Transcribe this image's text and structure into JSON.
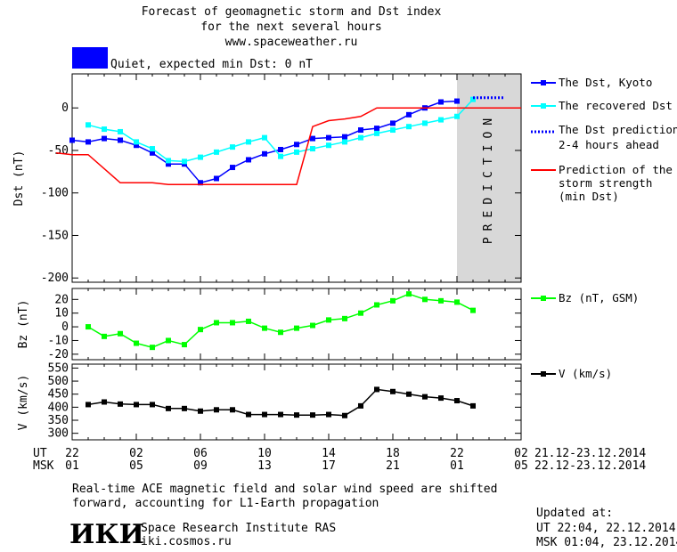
{
  "header": {
    "title_line1": "Forecast of geomagnetic storm and Dst index",
    "title_line2": "for the next several hours",
    "website": "www.spaceweather.ru",
    "status_text": "Quiet, expected min Dst: 0 nT",
    "status_color": "#0000ff"
  },
  "prediction_label": "PREDICTION",
  "time_axis": {
    "ut_label": "UT",
    "msk_label": "MSK",
    "ut_ticks": [
      "22",
      "02",
      "06",
      "10",
      "14",
      "18",
      "22",
      "02"
    ],
    "msk_ticks": [
      "01",
      "05",
      "09",
      "13",
      "17",
      "21",
      "01",
      "05"
    ],
    "ut_range": "21.12-23.12.2014",
    "msk_range": "22.12-23.12.2014"
  },
  "footer": {
    "note_line1": "Real-time ACE magnetic field and solar wind speed are shifted",
    "note_line2": "forward, accounting for L1-Earth propagation",
    "logo_text": "ИКИ",
    "institute": "Space Research Institute RAS",
    "institute_site": "iki.cosmos.ru",
    "updated_label": "Updated at:",
    "updated_ut": "UT  22:04, 22.12.2014",
    "updated_msk": "MSK 01:04, 23.12.2014"
  },
  "chart_data": [
    {
      "type": "line",
      "ylabel": "Dst (nT)",
      "ylim": [
        -205,
        40
      ],
      "y_ticks": [
        0,
        -50,
        -100,
        -150,
        -200
      ],
      "x_unit": "hours since 22 UT 21.12.2014",
      "xlim": [
        0,
        28
      ],
      "prediction_region": [
        24,
        28
      ],
      "series": [
        {
          "name": "The Dst, Kyoto",
          "color": "#0000ff",
          "marker": "square",
          "x": [
            0,
            1,
            2,
            3,
            4,
            5,
            6,
            7,
            8,
            9,
            10,
            11,
            12,
            13,
            14,
            15,
            16,
            17,
            18,
            19,
            20,
            21,
            22,
            23,
            24
          ],
          "y": [
            -38,
            -40,
            -36,
            -38,
            -44,
            -53,
            -66,
            -66,
            -88,
            -83,
            -70,
            -61,
            -54,
            -49,
            -43,
            -36,
            -35,
            -34,
            -26,
            -24,
            -18,
            -8,
            0,
            7,
            8
          ]
        },
        {
          "name": "The recovered Dst",
          "color": "#00ffff",
          "marker": "square",
          "x": [
            1,
            2,
            3,
            4,
            5,
            6,
            7,
            8,
            9,
            10,
            11,
            12,
            13,
            14,
            15,
            16,
            17,
            18,
            19,
            20,
            21,
            22,
            23,
            24,
            25
          ],
          "y": [
            -20,
            -25,
            -28,
            -40,
            -48,
            -62,
            -63,
            -58,
            -52,
            -46,
            -40,
            -35,
            -57,
            -52,
            -48,
            -44,
            -40,
            -35,
            -30,
            -26,
            -22,
            -18,
            -14,
            -10,
            10
          ]
        },
        {
          "name": "The Dst prediction",
          "name_line2": "2-4 hours ahead",
          "color": "#0000ff",
          "style": "dotted",
          "x": [
            25,
            26,
            27
          ],
          "y": [
            12,
            12,
            12
          ]
        },
        {
          "name": "Prediction of the",
          "name_line2": "storm strength",
          "name_line3": "(min Dst)",
          "color": "#ff0000",
          "x": [
            -1,
            0,
            1,
            3,
            5,
            6,
            7,
            8,
            9,
            10,
            11,
            12,
            13,
            14,
            15,
            16,
            17,
            18,
            19,
            20,
            21,
            22,
            23,
            24,
            25,
            26,
            27,
            28
          ],
          "y": [
            -53,
            -55,
            -55,
            -88,
            -88,
            -90,
            -90,
            -90,
            -90,
            -90,
            -90,
            -90,
            -90,
            -90,
            -22,
            -15,
            -13,
            -10,
            0,
            0,
            0,
            0,
            0,
            0,
            0,
            0,
            0,
            0
          ]
        }
      ]
    },
    {
      "type": "line",
      "ylabel": "Bz (nT)",
      "ylim": [
        -24,
        28
      ],
      "y_ticks": [
        20,
        10,
        0,
        -10,
        -20
      ],
      "series": [
        {
          "name": "Bz (nT, GSM)",
          "color": "#00ff00",
          "marker": "square",
          "x": [
            1,
            2,
            3,
            4,
            5,
            6,
            7,
            8,
            9,
            10,
            11,
            12,
            13,
            14,
            15,
            16,
            17,
            18,
            19,
            20,
            21,
            22,
            23,
            24,
            25
          ],
          "y": [
            0,
            -7,
            -5,
            -12,
            -15,
            -10,
            -13,
            -2,
            3,
            3,
            4,
            -1,
            -4,
            -1,
            1,
            5,
            6,
            10,
            16,
            19,
            24,
            20,
            19,
            18,
            12
          ]
        }
      ]
    },
    {
      "type": "line",
      "ylabel": "V (km/s)",
      "ylim": [
        275,
        565
      ],
      "y_ticks": [
        550,
        500,
        450,
        400,
        350,
        300
      ],
      "series": [
        {
          "name": "V (km/s)",
          "color": "#000000",
          "marker": "square",
          "x": [
            1,
            2,
            3,
            4,
            5,
            6,
            7,
            8,
            9,
            10,
            11,
            12,
            13,
            14,
            15,
            16,
            17,
            18,
            19,
            20,
            21,
            22,
            23,
            24,
            25
          ],
          "y": [
            410,
            420,
            412,
            410,
            410,
            395,
            395,
            385,
            390,
            390,
            372,
            372,
            372,
            370,
            370,
            372,
            368,
            405,
            468,
            460,
            450,
            440,
            435,
            425,
            405
          ]
        }
      ]
    }
  ]
}
